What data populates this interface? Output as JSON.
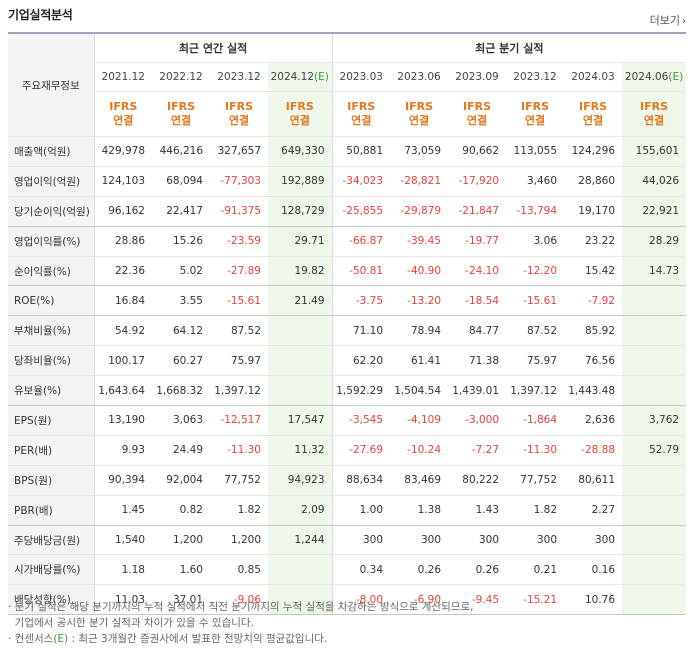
{
  "header": {
    "title": "기업실적분석",
    "more_label": "더보기"
  },
  "table": {
    "corner_label": "주요재무정보",
    "groups": [
      {
        "label": "최근 연간 실적"
      },
      {
        "label": "최근 분기 실적"
      }
    ],
    "periods": [
      "2021.12",
      "2022.12",
      "2023.12",
      "2024.12(E)",
      "2023.03",
      "2023.06",
      "2023.09",
      "2023.12",
      "2024.03",
      "2024.06(E)"
    ],
    "basis_top": "IFRS",
    "basis_bottom": "연결",
    "rows": [
      {
        "label": "매출액(억원)",
        "values": [
          "429,978",
          "446,216",
          "327,657",
          "649,330",
          "50,881",
          "73,059",
          "90,662",
          "113,055",
          "124,296",
          "155,601"
        ]
      },
      {
        "label": "영업이익(억원)",
        "values": [
          "124,103",
          "68,094",
          "-77,303",
          "192,889",
          "-34,023",
          "-28,821",
          "-17,920",
          "3,460",
          "28,860",
          "44,026"
        ]
      },
      {
        "label": "당기순이익(억원)",
        "values": [
          "96,162",
          "22,417",
          "-91,375",
          "128,729",
          "-25,855",
          "-29,879",
          "-21,847",
          "-13,794",
          "19,170",
          "22,921"
        ]
      },
      {
        "label": "영업이익률(%)",
        "values": [
          "28.86",
          "15.26",
          "-23.59",
          "29.71",
          "-66.87",
          "-39.45",
          "-19.77",
          "3.06",
          "23.22",
          "28.29"
        ]
      },
      {
        "label": "순이익률(%)",
        "values": [
          "22.36",
          "5.02",
          "-27.89",
          "19.82",
          "-50.81",
          "-40.90",
          "-24.10",
          "-12.20",
          "15.42",
          "14.73"
        ]
      },
      {
        "label": "ROE(%)",
        "values": [
          "16.84",
          "3.55",
          "-15.61",
          "21.49",
          "-3.75",
          "-13.20",
          "-18.54",
          "-15.61",
          "-7.92",
          ""
        ]
      },
      {
        "label": "부채비율(%)",
        "values": [
          "54.92",
          "64.12",
          "87.52",
          "",
          "71.10",
          "78.94",
          "84.77",
          "87.52",
          "85.92",
          ""
        ]
      },
      {
        "label": "당좌비율(%)",
        "values": [
          "100.17",
          "60.27",
          "75.97",
          "",
          "62.20",
          "61.41",
          "71.38",
          "75.97",
          "76.56",
          ""
        ]
      },
      {
        "label": "유보율(%)",
        "values": [
          "1,643.64",
          "1,668.32",
          "1,397.12",
          "",
          "1,592.29",
          "1,504.54",
          "1,439.01",
          "1,397.12",
          "1,443.48",
          ""
        ]
      },
      {
        "label": "EPS(원)",
        "values": [
          "13,190",
          "3,063",
          "-12,517",
          "17,547",
          "-3,545",
          "-4,109",
          "-3,000",
          "-1,864",
          "2,636",
          "3,762"
        ]
      },
      {
        "label": "PER(배)",
        "values": [
          "9.93",
          "24.49",
          "-11.30",
          "11.32",
          "-27.69",
          "-10.24",
          "-7.27",
          "-11.30",
          "-28.88",
          "52.79"
        ]
      },
      {
        "label": "BPS(원)",
        "values": [
          "90,394",
          "92,004",
          "77,752",
          "94,923",
          "88,634",
          "83,469",
          "80,222",
          "77,752",
          "80,611",
          ""
        ]
      },
      {
        "label": "PBR(배)",
        "values": [
          "1.45",
          "0.82",
          "1.82",
          "2.09",
          "1.00",
          "1.38",
          "1.43",
          "1.82",
          "2.27",
          ""
        ]
      },
      {
        "label": "주당배당금(원)",
        "values": [
          "1,540",
          "1,200",
          "1,200",
          "1,244",
          "300",
          "300",
          "300",
          "300",
          "300",
          ""
        ]
      },
      {
        "label": "시가배당률(%)",
        "values": [
          "1.18",
          "1.60",
          "0.85",
          "",
          "0.34",
          "0.26",
          "0.26",
          "0.21",
          "0.16",
          ""
        ]
      },
      {
        "label": "배당성향(%)",
        "values": [
          "11.03",
          "37.01",
          "-9.06",
          "",
          "-8.00",
          "-6.90",
          "-9.45",
          "-15.21",
          "10.76",
          ""
        ]
      }
    ]
  },
  "notes": [
    "· 분기 실적은 해당 분기까지의 누적 실적에서 직전 분기까지의 누적 실적을 차감하는 방식으로 계산되므로,",
    "  기업에서 공시한 분기 실적과 차이가 있을 수 있습니다.",
    "· 컨센서스(E) : 최근 3개월간 증권사에서 발표한 전망치의 평균값입니다."
  ],
  "colors": {
    "negative": "#e8403c",
    "ifrs": "#e4761b",
    "estimate_bg": "#eef7ea",
    "estimate_text": "#3a9a3a"
  }
}
